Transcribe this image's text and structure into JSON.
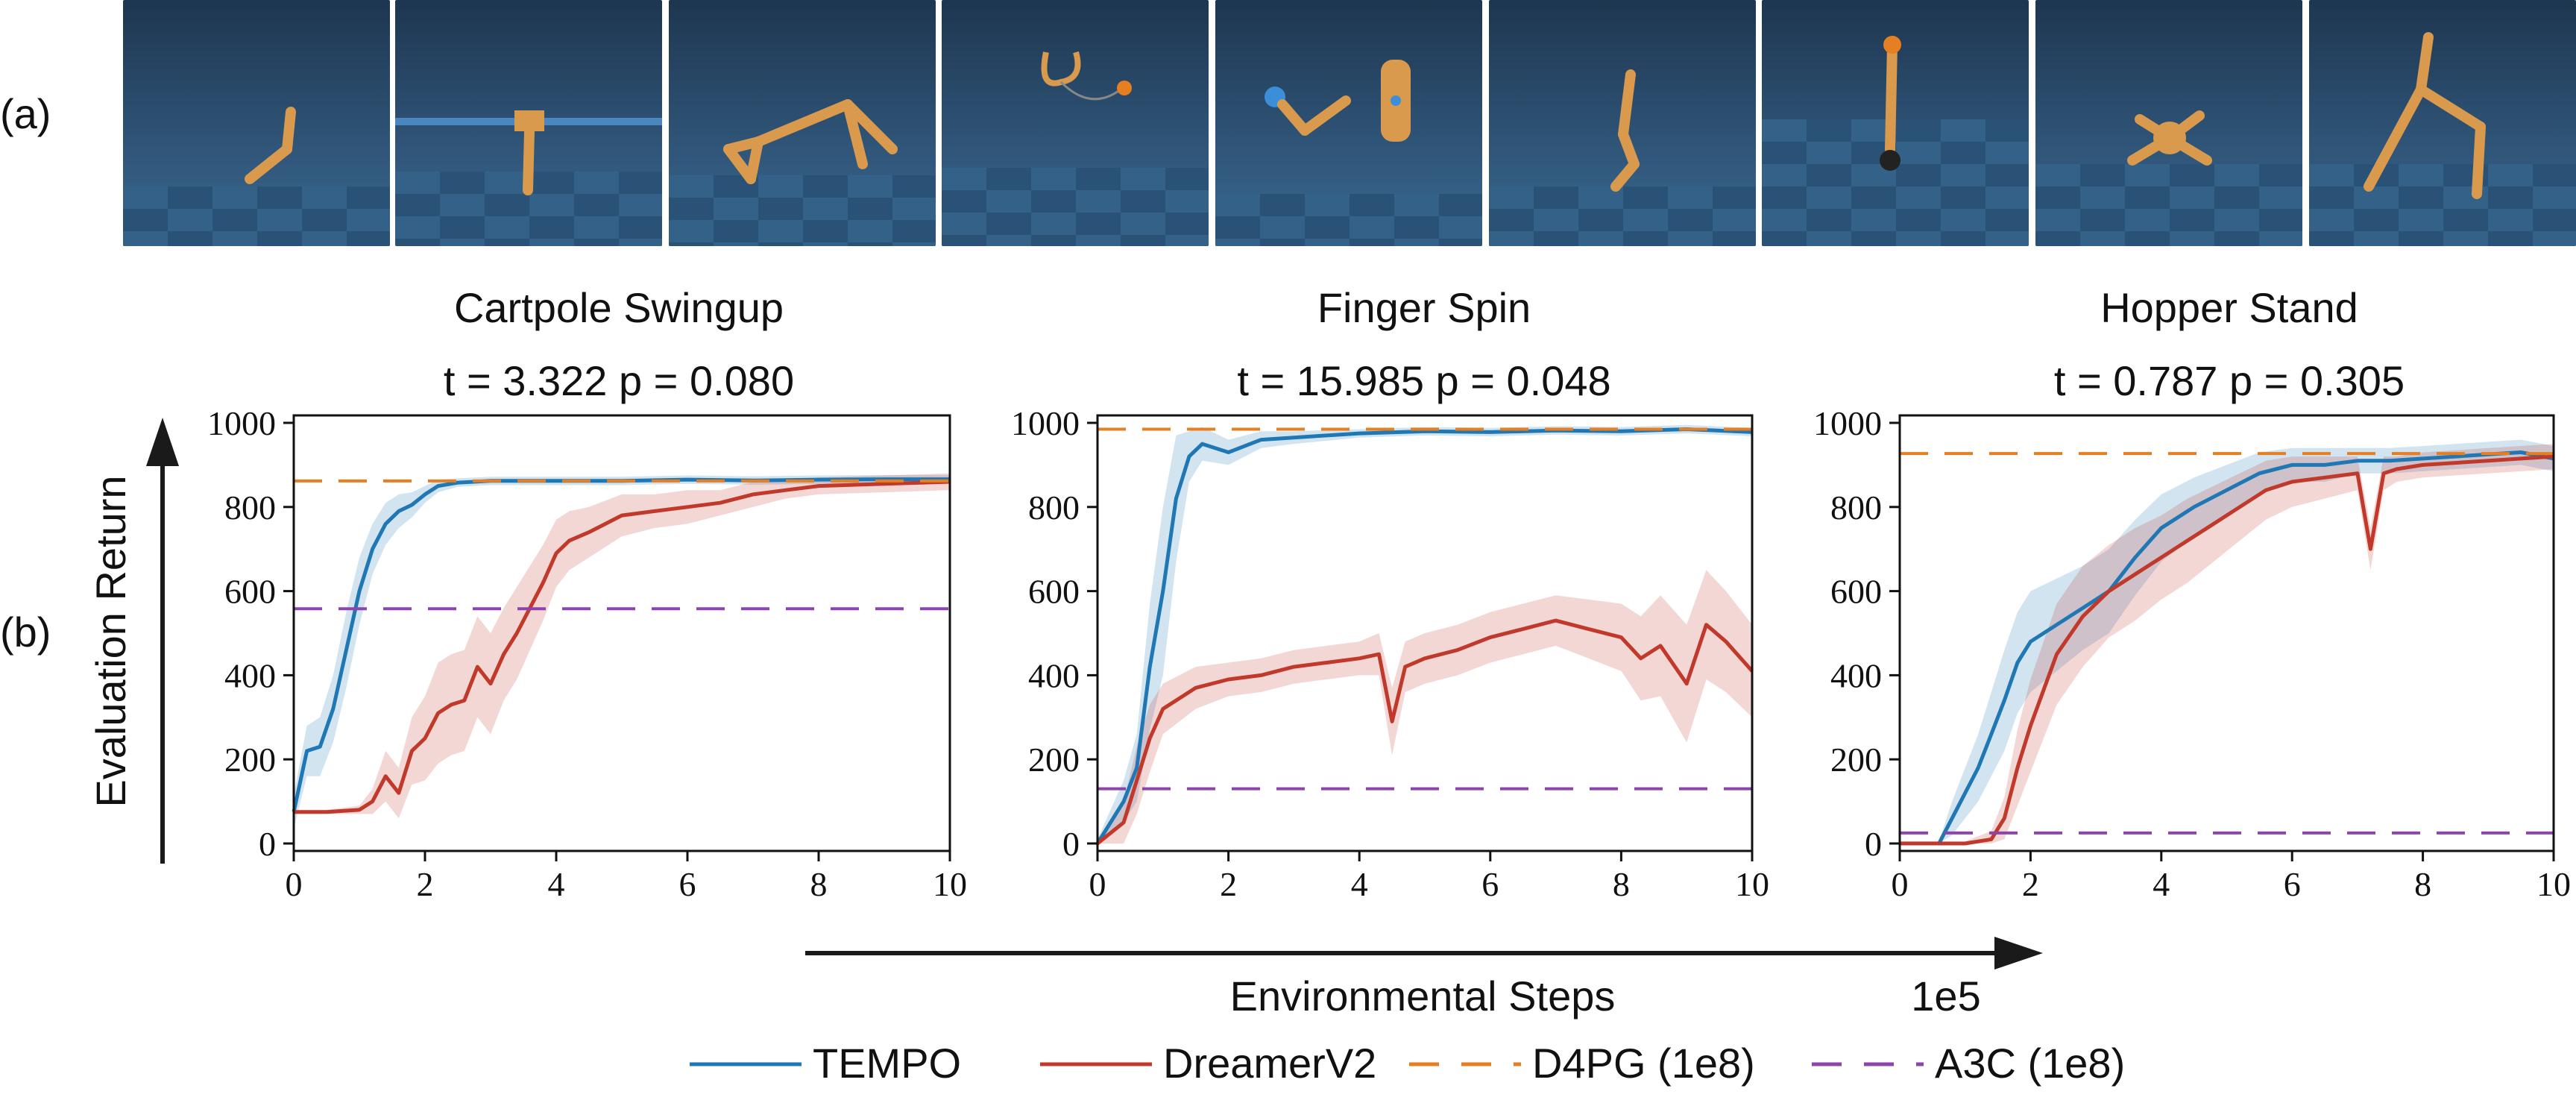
{
  "labels": {
    "panel_a": "(a)",
    "panel_b": "(b)"
  },
  "y_axis_title": "Evaluation Return",
  "x_axis_title": "Environmental Steps",
  "x_axis_scale": "1e5",
  "thumbnails": [
    {
      "name": "walker-thumb"
    },
    {
      "name": "cartpole-thumb"
    },
    {
      "name": "cheetah-thumb"
    },
    {
      "name": "reacher-thumb"
    },
    {
      "name": "finger-thumb"
    },
    {
      "name": "hopper-thumb"
    },
    {
      "name": "ball-in-cup-thumb"
    },
    {
      "name": "quadruped-thumb"
    },
    {
      "name": "walker2-thumb"
    }
  ],
  "colors": {
    "TEMPO": "#1f77b4",
    "DreamerV2": "#c0392b",
    "D4PG (1e8)": "#e67e22",
    "A3C (1e8)": "#8e44ad"
  },
  "legend": [
    {
      "label": "TEMPO",
      "color": "#1f77b4",
      "style": "solid"
    },
    {
      "label": "DreamerV2",
      "color": "#c0392b",
      "style": "solid"
    },
    {
      "label": "D4PG (1e8)",
      "color": "#e67e22",
      "style": "dashed"
    },
    {
      "label": "A3C (1e8)",
      "color": "#8e44ad",
      "style": "dashed"
    }
  ],
  "chart_data": [
    {
      "type": "line",
      "title": "Cartpole Swingup",
      "subtitle": "t = 3.322   p = 0.080",
      "xlim": [
        0,
        10
      ],
      "ylim": [
        0,
        1000
      ],
      "xticks": [
        0,
        2,
        4,
        6,
        8,
        10
      ],
      "yticks": [
        0,
        200,
        400,
        600,
        800,
        1000
      ],
      "series": [
        {
          "name": "TEMPO",
          "style": "solid",
          "x": [
            0,
            0.2,
            0.4,
            0.6,
            0.8,
            1.0,
            1.2,
            1.4,
            1.6,
            1.8,
            2.0,
            2.2,
            2.5,
            3,
            3.5,
            4,
            5,
            6,
            7,
            8,
            9,
            10
          ],
          "y": [
            75,
            220,
            230,
            320,
            460,
            600,
            700,
            760,
            790,
            805,
            830,
            850,
            858,
            862,
            862,
            862,
            862,
            865,
            863,
            865,
            866,
            866
          ],
          "band": [
            40,
            60,
            70,
            80,
            90,
            80,
            60,
            50,
            40,
            30,
            20,
            15,
            10,
            10,
            10,
            10,
            10,
            10,
            10,
            10,
            10,
            10
          ]
        },
        {
          "name": "DreamerV2",
          "style": "solid",
          "x": [
            0,
            0.5,
            1.0,
            1.2,
            1.4,
            1.6,
            1.8,
            2.0,
            2.2,
            2.4,
            2.6,
            2.8,
            3.0,
            3.2,
            3.4,
            3.6,
            3.8,
            4.0,
            4.2,
            4.5,
            5,
            5.5,
            6,
            6.5,
            7,
            7.5,
            8,
            9,
            10
          ],
          "y": [
            75,
            75,
            80,
            100,
            160,
            120,
            220,
            250,
            310,
            330,
            340,
            420,
            380,
            450,
            500,
            560,
            620,
            690,
            720,
            740,
            780,
            790,
            800,
            810,
            830,
            840,
            850,
            855,
            860
          ],
          "band": [
            5,
            5,
            10,
            30,
            60,
            60,
            80,
            100,
            120,
            120,
            120,
            120,
            120,
            110,
            110,
            100,
            90,
            80,
            70,
            60,
            50,
            40,
            40,
            30,
            30,
            20,
            20,
            20,
            20
          ]
        },
        {
          "name": "D4PG (1e8)",
          "style": "dashed",
          "constant": 862
        },
        {
          "name": "A3C (1e8)",
          "style": "dashed",
          "constant": 558
        }
      ]
    },
    {
      "type": "line",
      "title": "Finger Spin",
      "subtitle": "t = 15.985   p = 0.048",
      "xlim": [
        0,
        10
      ],
      "ylim": [
        0,
        1000
      ],
      "xticks": [
        0,
        2,
        4,
        6,
        8,
        10
      ],
      "yticks": [
        0,
        200,
        400,
        600,
        800,
        1000
      ],
      "series": [
        {
          "name": "TEMPO",
          "style": "solid",
          "x": [
            0,
            0.4,
            0.6,
            0.8,
            1.0,
            1.2,
            1.4,
            1.6,
            2.0,
            2.5,
            3,
            4,
            5,
            6,
            7,
            8,
            9,
            10
          ],
          "y": [
            0,
            100,
            180,
            420,
            600,
            820,
            920,
            950,
            930,
            960,
            965,
            975,
            980,
            978,
            982,
            980,
            985,
            978
          ],
          "band": [
            10,
            50,
            80,
            150,
            200,
            150,
            60,
            40,
            30,
            20,
            15,
            10,
            10,
            10,
            10,
            10,
            10,
            10
          ]
        },
        {
          "name": "DreamerV2",
          "style": "solid",
          "x": [
            0,
            0.4,
            0.6,
            0.8,
            1.0,
            1.5,
            2.0,
            2.5,
            3.0,
            3.5,
            4.0,
            4.3,
            4.5,
            4.7,
            5.0,
            5.5,
            6.0,
            6.5,
            7.0,
            7.5,
            8.0,
            8.3,
            8.6,
            9.0,
            9.3,
            9.6,
            10
          ],
          "y": [
            0,
            50,
            150,
            250,
            320,
            370,
            390,
            400,
            420,
            430,
            440,
            450,
            290,
            420,
            440,
            460,
            490,
            510,
            530,
            510,
            490,
            440,
            470,
            380,
            520,
            480,
            410
          ],
          "band": [
            10,
            50,
            80,
            80,
            60,
            50,
            40,
            40,
            40,
            40,
            40,
            50,
            80,
            60,
            60,
            60,
            60,
            60,
            60,
            70,
            80,
            100,
            120,
            140,
            130,
            120,
            110
          ]
        },
        {
          "name": "D4PG (1e8)",
          "style": "dashed",
          "constant": 985
        },
        {
          "name": "A3C (1e8)",
          "style": "dashed",
          "constant": 130
        }
      ]
    },
    {
      "type": "line",
      "title": "Hopper Stand",
      "subtitle": "t = 0.787   p = 0.305",
      "xlim": [
        0,
        10
      ],
      "ylim": [
        0,
        1000
      ],
      "xticks": [
        0,
        2,
        4,
        6,
        8,
        10
      ],
      "yticks": [
        0,
        200,
        400,
        600,
        800,
        1000
      ],
      "series": [
        {
          "name": "TEMPO",
          "style": "solid",
          "x": [
            0,
            0.6,
            0.8,
            1.0,
            1.2,
            1.4,
            1.6,
            1.8,
            2.0,
            2.4,
            2.8,
            3.2,
            3.6,
            4.0,
            4.5,
            5.0,
            5.5,
            6.0,
            6.5,
            7.0,
            7.5,
            8.0,
            8.5,
            9.0,
            9.5,
            10
          ],
          "y": [
            0,
            0,
            60,
            120,
            180,
            260,
            340,
            430,
            480,
            520,
            560,
            600,
            680,
            750,
            800,
            840,
            880,
            900,
            900,
            910,
            910,
            915,
            920,
            925,
            930,
            915
          ],
          "band": [
            5,
            5,
            40,
            60,
            80,
            100,
            120,
            120,
            120,
            110,
            100,
            100,
            90,
            80,
            70,
            60,
            50,
            40,
            40,
            30,
            30,
            30,
            30,
            30,
            30,
            30
          ]
        },
        {
          "name": "DreamerV2",
          "style": "solid",
          "x": [
            0,
            1.0,
            1.4,
            1.6,
            1.8,
            2.0,
            2.4,
            2.8,
            3.2,
            3.6,
            4.0,
            4.4,
            4.8,
            5.2,
            5.6,
            6.0,
            6.5,
            7.0,
            7.2,
            7.4,
            7.6,
            8.0,
            8.5,
            9.0,
            9.5,
            10
          ],
          "y": [
            0,
            0,
            10,
            60,
            180,
            280,
            450,
            540,
            600,
            640,
            680,
            720,
            760,
            800,
            840,
            860,
            870,
            880,
            700,
            880,
            890,
            900,
            905,
            910,
            915,
            920
          ],
          "band": [
            5,
            5,
            20,
            50,
            90,
            110,
            120,
            120,
            110,
            110,
            100,
            100,
            90,
            80,
            70,
            60,
            50,
            40,
            50,
            40,
            30,
            30,
            30,
            30,
            30,
            30
          ]
        },
        {
          "name": "D4PG (1e8)",
          "style": "dashed",
          "constant": 927
        },
        {
          "name": "A3C (1e8)",
          "style": "dashed",
          "constant": 25
        }
      ]
    }
  ]
}
